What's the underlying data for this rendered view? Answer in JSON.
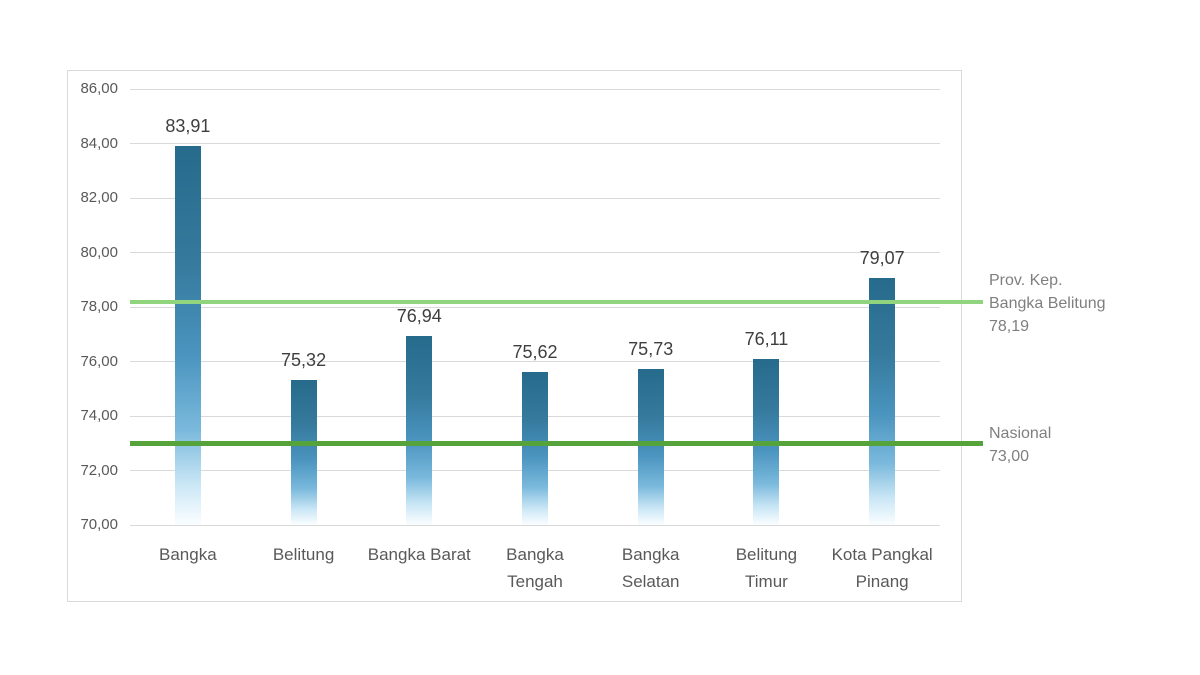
{
  "chart_data": {
    "type": "bar",
    "title": "",
    "categories": [
      "Bangka",
      "Belitung",
      "Bangka Barat",
      "Bangka\nTengah",
      "Bangka\nSelatan",
      "Belitung\nTimur",
      "Kota Pangkal\nPinang"
    ],
    "values": [
      83.91,
      75.32,
      76.94,
      75.62,
      75.73,
      76.11,
      79.07
    ],
    "value_labels": [
      "83,91",
      "75,32",
      "76,94",
      "75,62",
      "75,73",
      "76,11",
      "79,07"
    ],
    "xlabel": "",
    "ylabel": "",
    "ylim": [
      70,
      86
    ],
    "y_ticks": [
      70,
      72,
      74,
      76,
      78,
      80,
      82,
      84,
      86
    ],
    "y_tick_labels": [
      "70,00",
      "72,00",
      "74,00",
      "76,00",
      "78,00",
      "80,00",
      "82,00",
      "84,00",
      "86,00"
    ],
    "grid": true,
    "legend_position": "none",
    "reference_lines": [
      {
        "name": "prov-kep-bangka-belitung",
        "value": 78.19,
        "label": "Prov. Kep.\nBangka Belitung\n78,19",
        "color": "#90d47e",
        "thickness": 4
      },
      {
        "name": "nasional",
        "value": 73.0,
        "label": "Nasional\n73,00",
        "color": "#55a33a",
        "thickness": 5
      }
    ]
  },
  "colors": {
    "background": "#ffffff",
    "chart_border": "#d9d9d9",
    "gridline": "#d9d9d9",
    "axis_text": "#595959",
    "value_label_text": "#3f3f3f",
    "annotation_text": "#7f7f7f",
    "bar_gradient_top": "#266a8c",
    "bar_gradient_upper": "#35799c",
    "bar_gradient_mid": "#4a94bf",
    "bar_gradient_low": "#7ab9dc",
    "bar_gradient_pale": "#c9e6f5",
    "bar_gradient_bottom": "#f7fcff"
  }
}
